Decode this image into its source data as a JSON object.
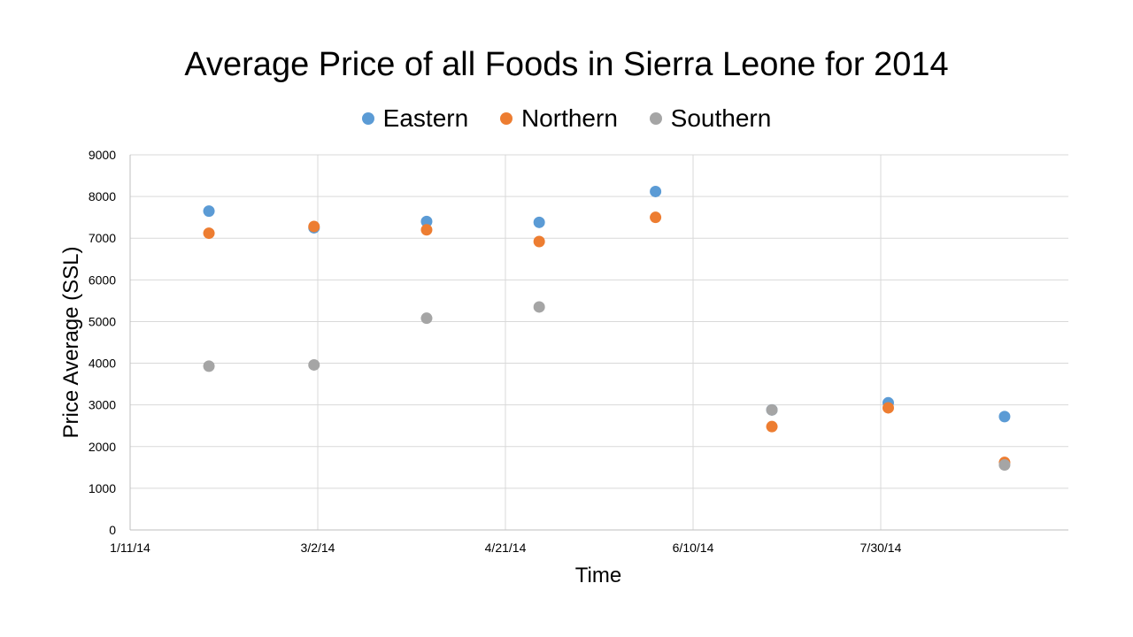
{
  "chart_data": {
    "type": "scatter",
    "title": "Average Price of all Foods in Sierra Leone for 2014",
    "xlabel": "Time",
    "ylabel": "Price Average (SSL)",
    "x_tick_labels": [
      "1/11/14",
      "3/2/14",
      "4/21/14",
      "6/10/14",
      "7/30/14"
    ],
    "x_ticks": [
      "2014-01-11",
      "2014-03-02",
      "2014-04-21",
      "2014-06-10",
      "2014-07-30"
    ],
    "xlim": [
      "2014-01-11",
      "2014-09-18"
    ],
    "ylim": [
      0,
      9000
    ],
    "y_ticks": [
      0,
      1000,
      2000,
      3000,
      4000,
      5000,
      6000,
      7000,
      8000,
      9000
    ],
    "grid": true,
    "legend_position": "top",
    "series": [
      {
        "name": "Eastern",
        "color": "#5B9BD5",
        "points": [
          {
            "x": "2014-02-01",
            "y": 7650
          },
          {
            "x": "2014-03-01",
            "y": 7250
          },
          {
            "x": "2014-03-31",
            "y": 7400
          },
          {
            "x": "2014-04-30",
            "y": 7380
          },
          {
            "x": "2014-05-31",
            "y": 8120
          },
          {
            "x": "2014-07-01",
            "y": 2880
          },
          {
            "x": "2014-08-01",
            "y": 3050
          },
          {
            "x": "2014-09-01",
            "y": 2720
          }
        ]
      },
      {
        "name": "Northern",
        "color": "#ED7D31",
        "points": [
          {
            "x": "2014-02-01",
            "y": 7120
          },
          {
            "x": "2014-03-01",
            "y": 7280
          },
          {
            "x": "2014-03-31",
            "y": 7200
          },
          {
            "x": "2014-04-30",
            "y": 6920
          },
          {
            "x": "2014-05-31",
            "y": 7500
          },
          {
            "x": "2014-07-01",
            "y": 2480
          },
          {
            "x": "2014-08-01",
            "y": 2930
          },
          {
            "x": "2014-09-01",
            "y": 1620
          }
        ]
      },
      {
        "name": "Southern",
        "color": "#A5A5A5",
        "points": [
          {
            "x": "2014-02-01",
            "y": 3930
          },
          {
            "x": "2014-03-01",
            "y": 3960
          },
          {
            "x": "2014-03-31",
            "y": 5080
          },
          {
            "x": "2014-04-30",
            "y": 5350
          },
          {
            "x": "2014-07-01",
            "y": 2880
          },
          {
            "x": "2014-09-01",
            "y": 1560
          }
        ]
      }
    ]
  }
}
